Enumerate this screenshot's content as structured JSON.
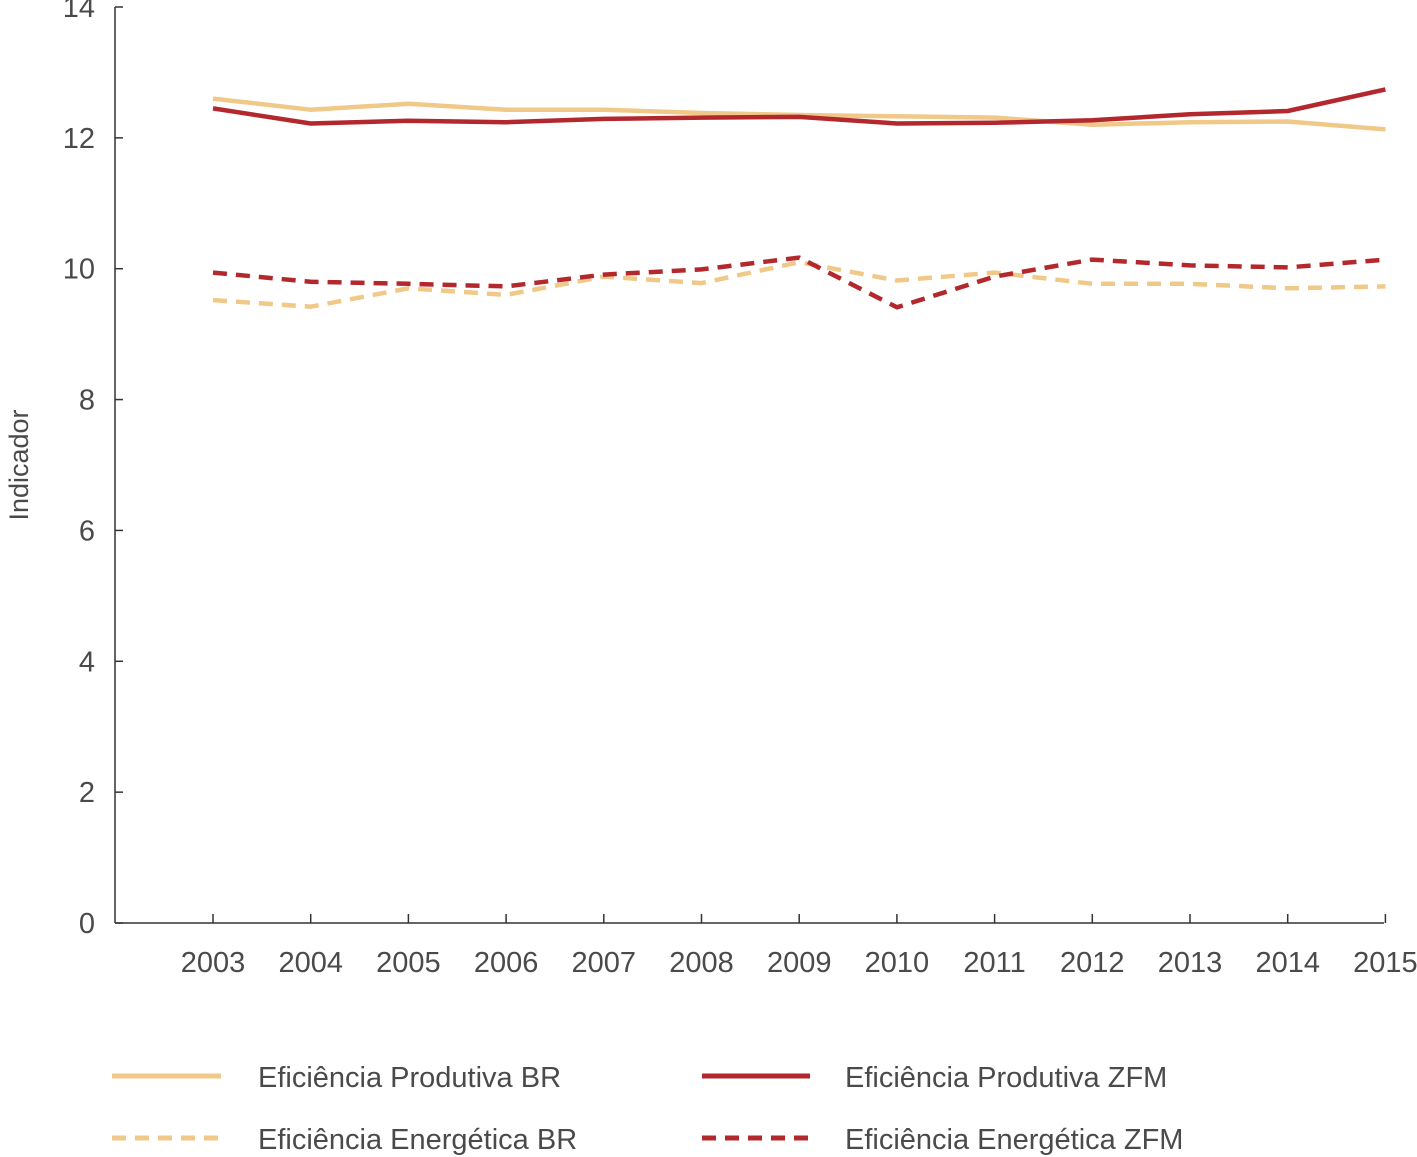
{
  "chart_data": {
    "type": "line",
    "title": "",
    "xlabel": "",
    "ylabel": "Indicador",
    "categories": [
      "2003",
      "2004",
      "2005",
      "2006",
      "2007",
      "2008",
      "2009",
      "2010",
      "2011",
      "2012",
      "2013",
      "2014",
      "2015"
    ],
    "ylim": [
      0,
      14
    ],
    "yticks": [
      "0",
      "2",
      "4",
      "6",
      "8",
      "10",
      "12",
      "14"
    ],
    "grid": false,
    "legend_position": "bottom",
    "series": [
      {
        "name": "Eficiência Produtiva BR",
        "style": "solid",
        "color": "#f0c888",
        "values": [
          12.6,
          12.43,
          12.52,
          12.43,
          12.43,
          12.38,
          12.35,
          12.33,
          12.31,
          12.2,
          12.24,
          12.25,
          12.13
        ]
      },
      {
        "name": "Eficiência Produtiva ZFM",
        "style": "solid",
        "color": "#b3282d",
        "values": [
          12.45,
          12.22,
          12.26,
          12.24,
          12.29,
          12.31,
          12.32,
          12.22,
          12.23,
          12.27,
          12.36,
          12.41,
          12.74
        ]
      },
      {
        "name": "Eficiência Energética BR",
        "style": "dashed",
        "color": "#f0c888",
        "values": [
          9.52,
          9.42,
          9.7,
          9.6,
          9.88,
          9.78,
          10.1,
          9.82,
          9.94,
          9.77,
          9.77,
          9.7,
          9.73
        ]
      },
      {
        "name": "Eficiência Energética ZFM",
        "style": "dashed",
        "color": "#b3282d",
        "values": [
          9.94,
          9.8,
          9.77,
          9.73,
          9.91,
          9.99,
          10.17,
          9.41,
          9.88,
          10.14,
          10.05,
          10.02,
          10.14
        ]
      }
    ]
  }
}
